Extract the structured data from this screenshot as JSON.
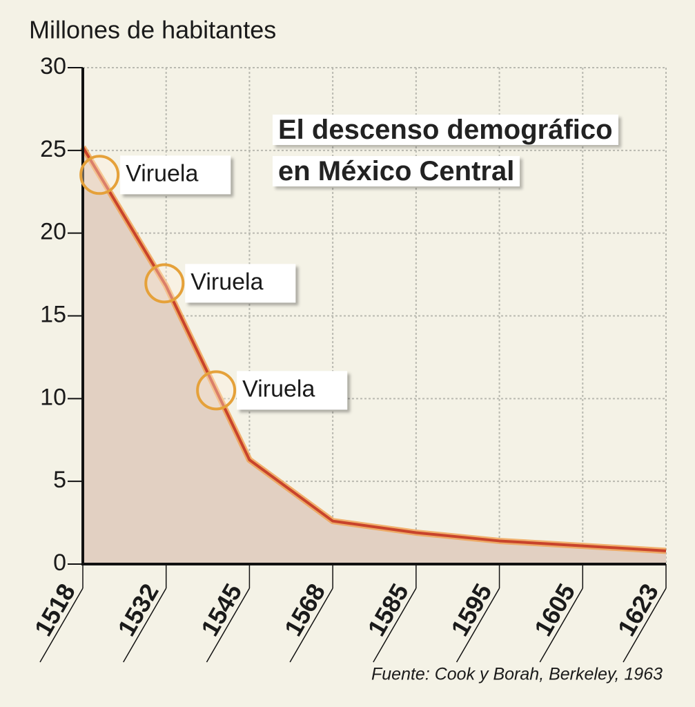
{
  "chart_data": {
    "type": "area",
    "title": "El descenso demográfico en México Central",
    "y_label": "Millones de habitantes",
    "source": "Fuente: Cook y Borah, Berkeley, 1963",
    "categories": [
      "1518",
      "1532",
      "1545",
      "1568",
      "1585",
      "1595",
      "1605",
      "1623"
    ],
    "values": [
      25.2,
      16.8,
      6.3,
      2.6,
      1.9,
      1.4,
      1.1,
      0.8
    ],
    "color": "#c8432b",
    "fill": "#e2d0c2",
    "ylim": [
      0,
      30
    ],
    "yticks": [
      0,
      5,
      10,
      15,
      20,
      25,
      30
    ],
    "grid": true,
    "annotations": [
      "Viruela",
      "Viruela",
      "Viruela"
    ]
  }
}
